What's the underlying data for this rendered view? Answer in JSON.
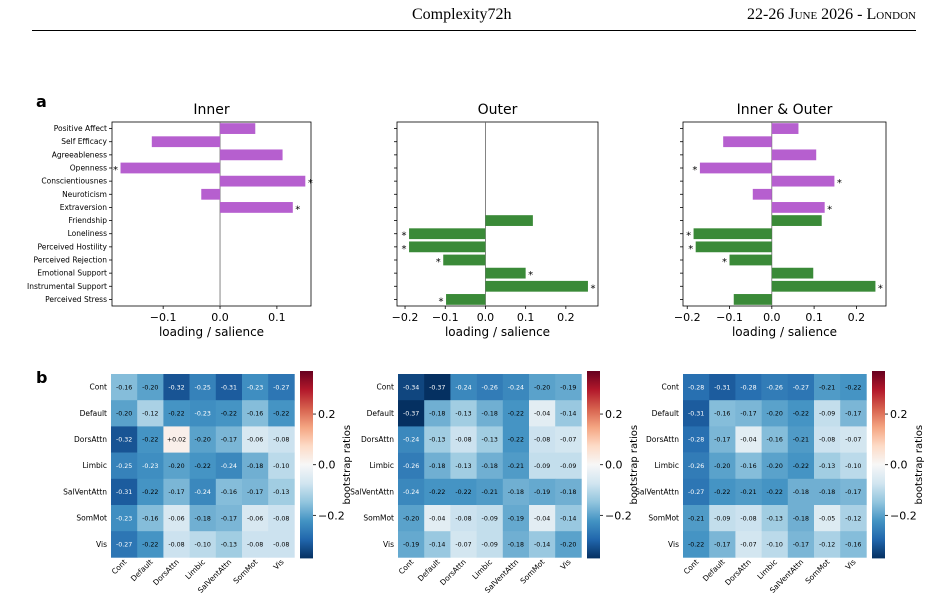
{
  "header": {
    "title": "Complexity72h",
    "date": "22-26 June 2026 - London"
  },
  "panel_a_label": "a",
  "panel_b_label": "b",
  "colors": {
    "purple": "#b65fcf",
    "green": "#3a8a38"
  },
  "chart_data": [
    {
      "type": "bar",
      "orientation": "horizontal",
      "title": "Inner",
      "xlabel": "loading / salience",
      "color": "#b65fcf",
      "xlim": [
        -0.19,
        0.16
      ],
      "xticks": [
        -0.1,
        0.0,
        0.1
      ],
      "categories": [
        "Positive Affect",
        "Self Efficacy",
        "Agreeableness",
        "Openness",
        "Conscientiousnes",
        "Neuroticism",
        "Extraversion",
        "Friendship",
        "Loneliness",
        "Perceived Hostility",
        "Perceived Rejection",
        "Emotional Support",
        "Instrumental Support",
        "Perceived Stress"
      ],
      "values": [
        0.062,
        -0.12,
        0.11,
        -0.175,
        0.15,
        -0.033,
        0.128,
        null,
        null,
        null,
        null,
        null,
        null,
        null
      ],
      "significant": [
        false,
        false,
        false,
        true,
        true,
        false,
        true,
        false,
        false,
        false,
        false,
        false,
        false,
        false
      ]
    },
    {
      "type": "bar",
      "orientation": "horizontal",
      "title": "Outer",
      "xlabel": "loading / salience",
      "color": "#3a8a38",
      "xlim": [
        -0.22,
        0.28
      ],
      "xticks": [
        -0.2,
        -0.1,
        0.0,
        0.1,
        0.2
      ],
      "categories": [
        "Positive Affect",
        "Self Efficacy",
        "Agreeableness",
        "Openness",
        "Conscientiousnes",
        "Neuroticism",
        "Extraversion",
        "Friendship",
        "Loneliness",
        "Perceived Hostility",
        "Perceived Rejection",
        "Emotional Support",
        "Instrumental Support",
        "Perceived Stress"
      ],
      "values": [
        null,
        null,
        null,
        null,
        null,
        null,
        null,
        0.118,
        -0.19,
        -0.19,
        -0.105,
        0.1,
        0.255,
        -0.098
      ],
      "significant": [
        false,
        false,
        false,
        false,
        false,
        false,
        false,
        false,
        true,
        true,
        true,
        true,
        true,
        true
      ]
    },
    {
      "type": "bar",
      "orientation": "horizontal",
      "title": "Inner & Outer",
      "xlabel": "loading / salience",
      "colors_by_group": {
        "inner": "#b65fcf",
        "outer": "#3a8a38"
      },
      "xlim": [
        -0.21,
        0.27
      ],
      "xticks": [
        -0.2,
        -0.1,
        0.0,
        0.1,
        0.2
      ],
      "categories": [
        "Positive Affect",
        "Self Efficacy",
        "Agreeableness",
        "Openness",
        "Conscientiousnes",
        "Neuroticism",
        "Extraversion",
        "Friendship",
        "Loneliness",
        "Perceived Hostility",
        "Perceived Rejection",
        "Emotional Support",
        "Instrumental Support",
        "Perceived Stress"
      ],
      "values": [
        0.063,
        -0.115,
        0.105,
        -0.17,
        0.148,
        -0.045,
        0.125,
        0.118,
        -0.185,
        -0.18,
        -0.1,
        0.098,
        0.245,
        -0.09
      ],
      "group": [
        "inner",
        "inner",
        "inner",
        "inner",
        "inner",
        "inner",
        "inner",
        "outer",
        "outer",
        "outer",
        "outer",
        "outer",
        "outer",
        "outer"
      ],
      "significant": [
        false,
        false,
        false,
        true,
        true,
        false,
        true,
        false,
        true,
        true,
        true,
        false,
        true,
        false
      ]
    },
    {
      "type": "heatmap",
      "colorbar_label": "bootstrap ratios",
      "colormap": "RdBu_r",
      "vmin": -0.37,
      "vmax": 0.37,
      "colorbar_ticks": [
        "0.2",
        "0.0",
        "−0.2"
      ],
      "rows": [
        "Cont",
        "Default",
        "DorsAttn",
        "Limbic",
        "SalVentAttn",
        "SomMot",
        "Vis"
      ],
      "cols": [
        "Cont",
        "Default",
        "DorsAttn",
        "Limbic",
        "SalVentAttn",
        "SomMot",
        "Vis"
      ],
      "values": [
        [
          "-0.16",
          "-0.20",
          "-0.32",
          "-0.25",
          "-0.31",
          "-0.23",
          "-0.27"
        ],
        [
          "-0.20",
          "-0.12",
          "-0.22",
          "-0.23",
          "-0.22",
          "-0.16",
          "-0.22"
        ],
        [
          "-0.32",
          "-0.22",
          "+0.02",
          "-0.20",
          "-0.17",
          "-0.06",
          "-0.08"
        ],
        [
          "-0.25",
          "-0.23",
          "-0.20",
          "-0.22",
          "-0.24",
          "-0.18",
          "-0.10"
        ],
        [
          "-0.31",
          "-0.22",
          "-0.17",
          "-0.24",
          "-0.16",
          "-0.17",
          "-0.13"
        ],
        [
          "-0.23",
          "-0.16",
          "-0.06",
          "-0.18",
          "-0.17",
          "-0.06",
          "-0.08"
        ],
        [
          "-0.27",
          "-0.22",
          "-0.08",
          "-0.10",
          "-0.13",
          "-0.08",
          "-0.08"
        ]
      ]
    },
    {
      "type": "heatmap",
      "colorbar_label": "bootstrap ratios",
      "colormap": "RdBu_r",
      "vmin": -0.37,
      "vmax": 0.37,
      "colorbar_ticks": [
        "0.2",
        "0.0",
        "−0.2"
      ],
      "rows": [
        "Cont",
        "Default",
        "DorsAttn",
        "Limbic",
        "SalVentAttn",
        "SomMot",
        "Vis"
      ],
      "cols": [
        "Cont",
        "Default",
        "DorsAttn",
        "Limbic",
        "SalVentAttn",
        "SomMot",
        "Vis"
      ],
      "values": [
        [
          "-0.34",
          "-0.37",
          "-0.24",
          "-0.26",
          "-0.24",
          "-0.20",
          "-0.19"
        ],
        [
          "-0.37",
          "-0.18",
          "-0.13",
          "-0.18",
          "-0.22",
          "-0.04",
          "-0.14"
        ],
        [
          "-0.24",
          "-0.13",
          "-0.08",
          "-0.13",
          "-0.22",
          "-0.08",
          "-0.07"
        ],
        [
          "-0.26",
          "-0.18",
          "-0.13",
          "-0.18",
          "-0.21",
          "-0.09",
          "-0.09"
        ],
        [
          "-0.24",
          "-0.22",
          "-0.22",
          "-0.21",
          "-0.18",
          "-0.19",
          "-0.18"
        ],
        [
          "-0.20",
          "-0.04",
          "-0.08",
          "-0.09",
          "-0.19",
          "-0.04",
          "-0.14"
        ],
        [
          "-0.19",
          "-0.14",
          "-0.07",
          "-0.09",
          "-0.18",
          "-0.14",
          "-0.20"
        ]
      ]
    },
    {
      "type": "heatmap",
      "colorbar_label": "bootstrap ratios",
      "colormap": "RdBu_r",
      "vmin": -0.37,
      "vmax": 0.37,
      "colorbar_ticks": [
        "0.2",
        "0.0",
        "−0.2"
      ],
      "rows": [
        "Cont",
        "Default",
        "DorsAttn",
        "Limbic",
        "SalVentAttn",
        "SomMot",
        "Vis"
      ],
      "cols": [
        "Cont",
        "Default",
        "DorsAttn",
        "Limbic",
        "SalVentAttn",
        "SomMot",
        "Vis"
      ],
      "values": [
        [
          "-0.28",
          "-0.31",
          "-0.28",
          "-0.26",
          "-0.27",
          "-0.21",
          "-0.22"
        ],
        [
          "-0.31",
          "-0.16",
          "-0.17",
          "-0.20",
          "-0.22",
          "-0.09",
          "-0.17"
        ],
        [
          "-0.28",
          "-0.17",
          "-0.04",
          "-0.16",
          "-0.21",
          "-0.08",
          "-0.07"
        ],
        [
          "-0.26",
          "-0.20",
          "-0.16",
          "-0.20",
          "-0.22",
          "-0.13",
          "-0.10"
        ],
        [
          "-0.27",
          "-0.22",
          "-0.21",
          "-0.22",
          "-0.18",
          "-0.18",
          "-0.17"
        ],
        [
          "-0.21",
          "-0.09",
          "-0.08",
          "-0.13",
          "-0.18",
          "-0.05",
          "-0.12"
        ],
        [
          "-0.22",
          "-0.17",
          "-0.07",
          "-0.10",
          "-0.17",
          "-0.12",
          "-0.16"
        ]
      ]
    }
  ]
}
